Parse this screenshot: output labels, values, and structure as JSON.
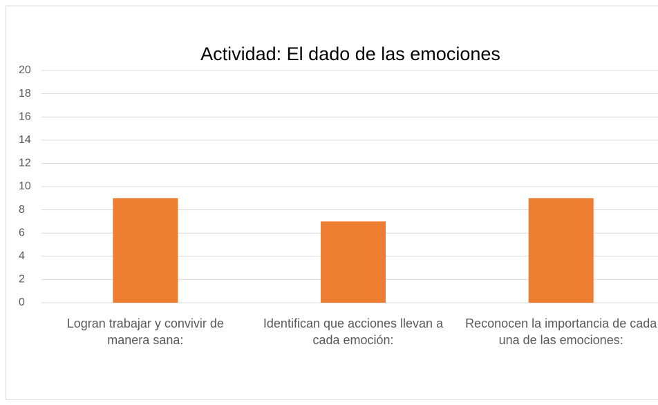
{
  "chart_data": {
    "type": "bar",
    "title": "Actividad: El dado de las emociones",
    "categories": [
      "Logran trabajar y convivir de manera sana:",
      "Identifican que acciones llevan a cada emoción:",
      "Reconocen la importancia de cada una de las emociones:"
    ],
    "values": [
      9,
      7,
      9
    ],
    "color": "#ed7d31",
    "ylim": [
      0,
      20
    ],
    "yticks": [
      0,
      2,
      4,
      6,
      8,
      10,
      12,
      14,
      16,
      18,
      20
    ],
    "grid": true
  }
}
